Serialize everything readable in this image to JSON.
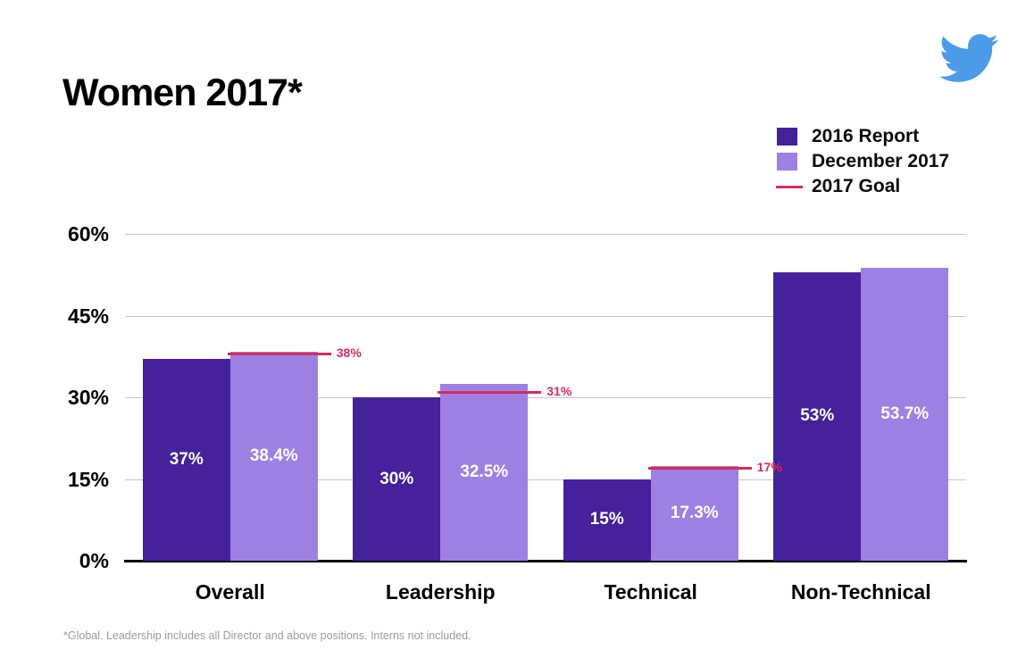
{
  "page": {
    "title": "Women 2017*",
    "footnote": "*Global. Leadership includes all Director and above positions. Interns not included."
  },
  "logo": {
    "label": "Twitter",
    "color": "#4B9BE8"
  },
  "legend": {
    "items": [
      {
        "label": "2016 Report",
        "swatch": "square",
        "color": "#45219B"
      },
      {
        "label": "December 2017",
        "swatch": "square",
        "color": "#9E80E3"
      },
      {
        "label": "2017 Goal",
        "swatch": "line",
        "color": "#D62B5E"
      }
    ]
  },
  "chart_data": {
    "type": "bar",
    "title": "Women 2017*",
    "categories": [
      "Overall",
      "Leadership",
      "Technical",
      "Non-Technical"
    ],
    "series": [
      {
        "name": "2016 Report",
        "color": "#45219B",
        "label_color": "#FFFFFF",
        "values": [
          37,
          30,
          15,
          53
        ],
        "value_labels": [
          "37%",
          "30%",
          "15%",
          "53%"
        ]
      },
      {
        "name": "December 2017",
        "color": "#9E80E3",
        "label_color": "#FFFFFF",
        "values": [
          38.4,
          32.5,
          17.3,
          53.7
        ],
        "value_labels": [
          "38.4%",
          "32.5%",
          "17.3%",
          "53.7%"
        ]
      }
    ],
    "goals": [
      {
        "category": "Overall",
        "value": 38,
        "label": "38%"
      },
      {
        "category": "Leadership",
        "value": 31,
        "label": "31%"
      },
      {
        "category": "Technical",
        "value": 17,
        "label": "17%"
      }
    ],
    "goal_color": "#D62B5E",
    "y_axis": {
      "min": 0,
      "max": 60,
      "ticks": [
        60,
        45,
        30,
        15,
        0
      ],
      "tick_labels": [
        "60%",
        "45%",
        "30%",
        "15%",
        "0%"
      ]
    },
    "grid": true,
    "gridline_color": "#C6C6C6",
    "axis_line_color": "#000000",
    "legend_position": "top-right"
  }
}
